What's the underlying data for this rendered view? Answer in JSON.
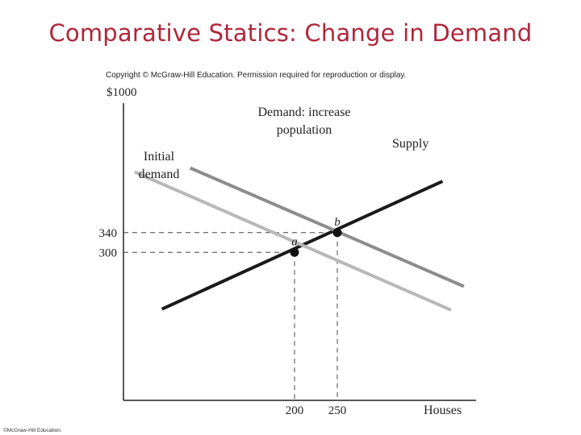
{
  "slide": {
    "title": "Comparative Statics: Change in Demand",
    "copyright": "Copyright © McGraw-Hill Education. Permission required for reproduction or display.",
    "footer": "©McGraw-Hill Education."
  },
  "chart_data": {
    "type": "line",
    "ylabel_top": "$1000",
    "xlabel": "Houses",
    "y_ticks": [
      {
        "value": 340,
        "label": "340"
      },
      {
        "value": 300,
        "label": "300"
      }
    ],
    "x_ticks": [
      {
        "value": 200,
        "label": "200"
      },
      {
        "value": 250,
        "label": "250"
      }
    ],
    "series": [
      {
        "name": "Supply",
        "label_lines": [
          "Supply"
        ],
        "color": "#1a1a1a",
        "points": [
          {
            "x": 45,
            "y": 185
          },
          {
            "x": 373,
            "y": 444
          }
        ]
      },
      {
        "name": "Initial demand",
        "label_lines": [
          "Initial",
          "demand"
        ],
        "color": "#b8b8b8",
        "points": [
          {
            "x": 13,
            "y": 463
          },
          {
            "x": 383,
            "y": 183
          }
        ]
      },
      {
        "name": "Demand: increase population",
        "label_lines": [
          "Demand: increase",
          "population"
        ],
        "color": "#8c8c8c",
        "points": [
          {
            "x": 78,
            "y": 471
          },
          {
            "x": 398,
            "y": 231
          }
        ]
      }
    ],
    "equilibria": [
      {
        "label": "a",
        "x": 200,
        "y": 300
      },
      {
        "label": "b",
        "x": 250,
        "y": 340
      }
    ]
  }
}
